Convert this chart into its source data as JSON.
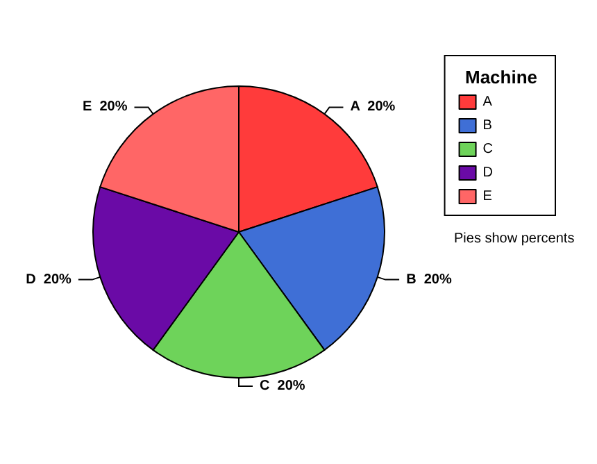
{
  "chart_data": {
    "type": "pie",
    "categories": [
      "A",
      "B",
      "C",
      "D",
      "E"
    ],
    "values": [
      20,
      20,
      20,
      20,
      20
    ],
    "colors": [
      "#ff3b3b",
      "#3f6fd6",
      "#6ed35a",
      "#6a0aa6",
      "#ff6666"
    ],
    "value_labels": [
      "20%",
      "20%",
      "20%",
      "20%",
      "20%"
    ],
    "legend": "right",
    "legend_title": "Machine",
    "annotations": [
      "Pies show percents"
    ]
  }
}
